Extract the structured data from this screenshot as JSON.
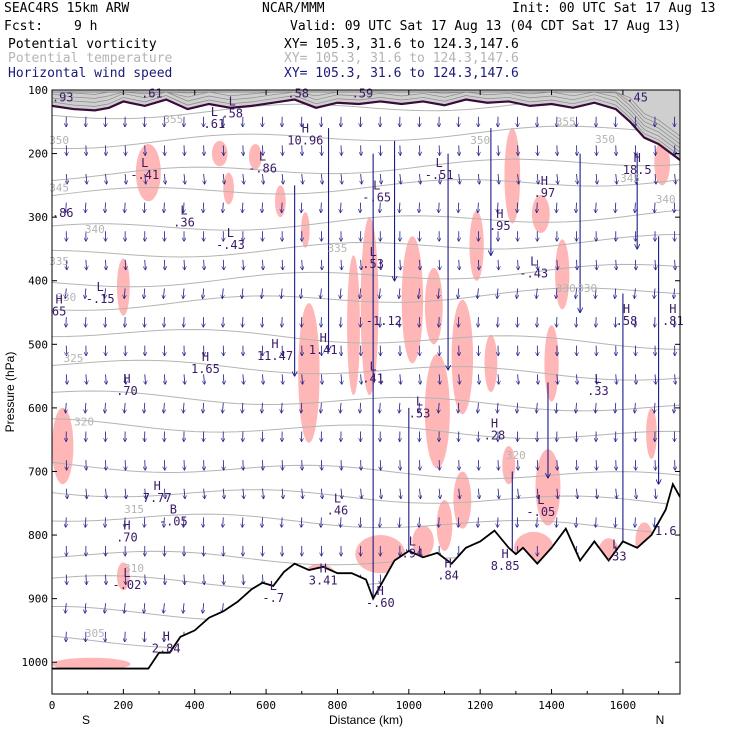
{
  "header": {
    "model": "SEAC4RS 15km ARW",
    "org": "NCAR/MMM",
    "init": "Init: 00 UTC Sat 17 Aug 13",
    "fcst_label": "Fcst:",
    "fcst_value": "9 h",
    "valid": "Valid: 09 UTC Sat 17 Aug 13 (04 CDT Sat 17 Aug 13)",
    "fields": [
      {
        "name": "Potential vorticity",
        "xy": "XY= 105.3, 31.6 to 124.3,147.6",
        "color": "#000000"
      },
      {
        "name": "Potential temperature",
        "xy": "XY= 105.3, 31.6 to 124.3,147.6",
        "color": "#b4b4b4"
      },
      {
        "name": "Horizontal wind speed",
        "xy": "XY= 105.3, 31.6 to 124.3,147.6",
        "color": "#1a1a7a"
      }
    ]
  },
  "chart_data": {
    "type": "cross-section",
    "xlabel": "Distance (km)",
    "ylabel": "Pressure (hPa)",
    "xlim": [
      0,
      1760
    ],
    "ylim": [
      1050,
      100
    ],
    "x_ticks": [
      "0",
      "200",
      "400",
      "600",
      "800",
      "1000",
      "1200",
      "1400",
      "1600"
    ],
    "y_ticks": [
      "100",
      "200",
      "300",
      "400",
      "500",
      "600",
      "700",
      "800",
      "900",
      "1000"
    ],
    "end_left": "S",
    "end_right": "N",
    "colors": {
      "theta": "#b4b4b4",
      "wind": "#1a1a8a",
      "pv_shade": "#ffb6b6",
      "terrain": "#000000",
      "tropopause": "#3a0a3a"
    },
    "theta_labels": [
      {
        "text": "350",
        "x": 20,
        "p": 185
      },
      {
        "text": "345",
        "x": 20,
        "p": 260
      },
      {
        "text": "340",
        "x": 120,
        "p": 325
      },
      {
        "text": "335",
        "x": 20,
        "p": 375
      },
      {
        "text": "330",
        "x": 40,
        "p": 432
      },
      {
        "text": "325",
        "x": 60,
        "p": 528
      },
      {
        "text": "320",
        "x": 90,
        "p": 628
      },
      {
        "text": "315",
        "x": 230,
        "p": 765
      },
      {
        "text": "310",
        "x": 230,
        "p": 858
      },
      {
        "text": "305",
        "x": 120,
        "p": 960
      },
      {
        "text": "350",
        "x": 1550,
        "p": 183
      },
      {
        "text": "345",
        "x": 1620,
        "p": 245
      },
      {
        "text": "340",
        "x": 1720,
        "p": 278
      },
      {
        "text": "335",
        "x": 800,
        "p": 355
      },
      {
        "text": "330",
        "x": 1440,
        "p": 418
      },
      {
        "text": "330",
        "x": 1500,
        "p": 418
      },
      {
        "text": "355",
        "x": 340,
        "p": 152
      },
      {
        "text": "350",
        "x": 1200,
        "p": 185
      },
      {
        "text": "320",
        "x": 1300,
        "p": 680
      },
      {
        "text": "355",
        "x": 1440,
        "p": 156
      }
    ],
    "hl_labels": [
      {
        "sym": "",
        "val": ".93",
        "x": 30,
        "p": 118
      },
      {
        "sym": "",
        "val": ".61",
        "x": 280,
        "p": 112
      },
      {
        "sym": "",
        "val": ".58",
        "x": 690,
        "p": 112
      },
      {
        "sym": "",
        "val": ".59",
        "x": 870,
        "p": 112
      },
      {
        "sym": "",
        "val": ".45",
        "x": 1640,
        "p": 118
      },
      {
        "sym": "L",
        "val": ".61",
        "x": 455,
        "p": 160
      },
      {
        "sym": "L",
        "val": ".58",
        "x": 505,
        "p": 143
      },
      {
        "sym": "H",
        "val": "10.96",
        "x": 710,
        "p": 186
      },
      {
        "sym": "L",
        "val": "-.41",
        "x": 260,
        "p": 240
      },
      {
        "sym": "L",
        "val": "-.86",
        "x": 590,
        "p": 230
      },
      {
        "sym": "L",
        "val": "-.51",
        "x": 1085,
        "p": 240
      },
      {
        "sym": "H",
        "val": "18.5",
        "x": 1640,
        "p": 232
      },
      {
        "sym": "H",
        "val": ".97",
        "x": 1380,
        "p": 268
      },
      {
        "sym": "L",
        "val": "-.65",
        "x": 910,
        "p": 275
      },
      {
        "sym": "",
        "val": ".86",
        "x": 30,
        "p": 300
      },
      {
        "sym": "L",
        "val": ".36",
        "x": 370,
        "p": 315
      },
      {
        "sym": "H",
        "val": ".95",
        "x": 1255,
        "p": 320
      },
      {
        "sym": "L",
        "val": "-.43",
        "x": 500,
        "p": 350
      },
      {
        "sym": "L",
        "val": ".53",
        "x": 900,
        "p": 380
      },
      {
        "sym": "L",
        "val": "-.43",
        "x": 1350,
        "p": 395
      },
      {
        "sym": "L",
        "val": "-.15",
        "x": 135,
        "p": 435
      },
      {
        "sym": "H",
        "val": "65",
        "x": 20,
        "p": 455
      },
      {
        "sym": "",
        "val": "-1.12",
        "x": 930,
        "p": 470
      },
      {
        "sym": "H",
        "val": ".58",
        "x": 1610,
        "p": 470
      },
      {
        "sym": "H",
        "val": ".81",
        "x": 1740,
        "p": 470
      },
      {
        "sym": "H",
        "val": "11.47",
        "x": 625,
        "p": 525
      },
      {
        "sym": "H",
        "val": "1.41",
        "x": 760,
        "p": 515
      },
      {
        "sym": "H",
        "val": "1.65",
        "x": 430,
        "p": 545
      },
      {
        "sym": "L",
        "val": ".41",
        "x": 900,
        "p": 560
      },
      {
        "sym": "H",
        "val": ".70",
        "x": 210,
        "p": 580
      },
      {
        "sym": "L",
        "val": ".33",
        "x": 1530,
        "p": 580
      },
      {
        "sym": "L",
        "val": ".53",
        "x": 1030,
        "p": 615
      },
      {
        "sym": "H",
        "val": ".28",
        "x": 1240,
        "p": 650
      },
      {
        "sym": "H",
        "val": "7.77",
        "x": 295,
        "p": 748
      },
      {
        "sym": "L",
        "val": ".46",
        "x": 800,
        "p": 768
      },
      {
        "sym": "B",
        "val": "-.05",
        "x": 340,
        "p": 785
      },
      {
        "sym": "L",
        "val": "-.05",
        "x": 1370,
        "p": 770
      },
      {
        "sym": "H",
        "val": ".70",
        "x": 210,
        "p": 810
      },
      {
        "sym": "L",
        "val": ".94",
        "x": 1010,
        "p": 835
      },
      {
        "sym": "H",
        "val": ".84",
        "x": 1110,
        "p": 870
      },
      {
        "sym": "H",
        "val": "8.85",
        "x": 1270,
        "p": 855
      },
      {
        "sym": "L",
        "val": ".33",
        "x": 1580,
        "p": 840
      },
      {
        "sym": "L",
        "val": "-.02",
        "x": 210,
        "p": 885
      },
      {
        "sym": "H",
        "val": "3.41",
        "x": 760,
        "p": 878
      },
      {
        "sym": "H",
        "val": "-.60",
        "x": 920,
        "p": 913
      },
      {
        "sym": "L",
        "val": "-.7",
        "x": 620,
        "p": 905
      },
      {
        "sym": "H",
        "val": "2.84",
        "x": 320,
        "p": 985
      },
      {
        "sym": "",
        "val": "1.6",
        "x": 1720,
        "p": 800
      }
    ],
    "terrain": [
      [
        0,
        1010
      ],
      [
        50,
        1010
      ],
      [
        100,
        1010
      ],
      [
        200,
        1010
      ],
      [
        270,
        1010
      ],
      [
        300,
        985
      ],
      [
        330,
        985
      ],
      [
        360,
        960
      ],
      [
        400,
        950
      ],
      [
        440,
        930
      ],
      [
        480,
        920
      ],
      [
        520,
        905
      ],
      [
        560,
        885
      ],
      [
        590,
        875
      ],
      [
        620,
        880
      ],
      [
        650,
        858
      ],
      [
        680,
        845
      ],
      [
        720,
        855
      ],
      [
        760,
        850
      ],
      [
        800,
        860
      ],
      [
        840,
        860
      ],
      [
        880,
        870
      ],
      [
        900,
        900
      ],
      [
        920,
        880
      ],
      [
        960,
        840
      ],
      [
        1000,
        825
      ],
      [
        1040,
        835
      ],
      [
        1080,
        828
      ],
      [
        1120,
        845
      ],
      [
        1160,
        820
      ],
      [
        1200,
        810
      ],
      [
        1240,
        793
      ],
      [
        1280,
        820
      ],
      [
        1300,
        830
      ],
      [
        1320,
        820
      ],
      [
        1360,
        845
      ],
      [
        1400,
        820
      ],
      [
        1440,
        790
      ],
      [
        1480,
        840
      ],
      [
        1520,
        810
      ],
      [
        1560,
        840
      ],
      [
        1600,
        810
      ],
      [
        1640,
        820
      ],
      [
        1680,
        800
      ],
      [
        1720,
        760
      ],
      [
        1740,
        720
      ],
      [
        1760,
        740
      ]
    ],
    "tropopause": [
      [
        0,
        125
      ],
      [
        60,
        130
      ],
      [
        120,
        132
      ],
      [
        160,
        128
      ],
      [
        200,
        118
      ],
      [
        260,
        125
      ],
      [
        320,
        115
      ],
      [
        380,
        130
      ],
      [
        440,
        122
      ],
      [
        500,
        128
      ],
      [
        560,
        125
      ],
      [
        620,
        120
      ],
      [
        680,
        115
      ],
      [
        740,
        128
      ],
      [
        800,
        120
      ],
      [
        860,
        122
      ],
      [
        920,
        118
      ],
      [
        980,
        122
      ],
      [
        1040,
        118
      ],
      [
        1100,
        124
      ],
      [
        1160,
        115
      ],
      [
        1220,
        120
      ],
      [
        1280,
        118
      ],
      [
        1340,
        125
      ],
      [
        1400,
        122
      ],
      [
        1460,
        128
      ],
      [
        1520,
        120
      ],
      [
        1580,
        130
      ],
      [
        1620,
        150
      ],
      [
        1660,
        175
      ],
      [
        1700,
        185
      ],
      [
        1760,
        210
      ]
    ],
    "pv_regions": [
      {
        "x": 270,
        "p": 230,
        "rx": 35,
        "rp": 45
      },
      {
        "x": 470,
        "p": 200,
        "rx": 22,
        "rp": 20
      },
      {
        "x": 495,
        "p": 255,
        "rx": 15,
        "rp": 25
      },
      {
        "x": 570,
        "p": 205,
        "rx": 18,
        "rp": 20
      },
      {
        "x": 640,
        "p": 275,
        "rx": 15,
        "rp": 25
      },
      {
        "x": 710,
        "p": 320,
        "rx": 12,
        "rp": 28
      },
      {
        "x": 200,
        "p": 410,
        "rx": 18,
        "rp": 45
      },
      {
        "x": 890,
        "p": 440,
        "rx": 25,
        "rp": 140
      },
      {
        "x": 845,
        "p": 470,
        "rx": 18,
        "rp": 110
      },
      {
        "x": 1010,
        "p": 430,
        "rx": 30,
        "rp": 100
      },
      {
        "x": 1070,
        "p": 440,
        "rx": 25,
        "rp": 60
      },
      {
        "x": 1080,
        "p": 605,
        "rx": 35,
        "rp": 90
      },
      {
        "x": 1150,
        "p": 520,
        "rx": 30,
        "rp": 90
      },
      {
        "x": 1190,
        "p": 345,
        "rx": 20,
        "rp": 55
      },
      {
        "x": 1290,
        "p": 235,
        "rx": 22,
        "rp": 75
      },
      {
        "x": 1370,
        "p": 295,
        "rx": 25,
        "rp": 30
      },
      {
        "x": 1430,
        "p": 390,
        "rx": 20,
        "rp": 55
      },
      {
        "x": 1400,
        "p": 530,
        "rx": 20,
        "rp": 60
      },
      {
        "x": 1230,
        "p": 530,
        "rx": 18,
        "rp": 45
      },
      {
        "x": 720,
        "p": 545,
        "rx": 30,
        "rp": 110
      },
      {
        "x": 30,
        "p": 660,
        "rx": 30,
        "rp": 60
      },
      {
        "x": 1390,
        "p": 725,
        "rx": 35,
        "rp": 60
      },
      {
        "x": 1150,
        "p": 745,
        "rx": 25,
        "rp": 45
      },
      {
        "x": 1280,
        "p": 690,
        "rx": 18,
        "rp": 30
      },
      {
        "x": 1680,
        "p": 640,
        "rx": 15,
        "rp": 40
      },
      {
        "x": 1100,
        "p": 785,
        "rx": 22,
        "rp": 40
      },
      {
        "x": 920,
        "p": 830,
        "rx": 70,
        "rp": 30
      },
      {
        "x": 1040,
        "p": 810,
        "rx": 30,
        "rp": 25
      },
      {
        "x": 1350,
        "p": 820,
        "rx": 55,
        "rp": 25
      },
      {
        "x": 1560,
        "p": 830,
        "rx": 30,
        "rp": 25
      },
      {
        "x": 1660,
        "p": 810,
        "rx": 25,
        "rp": 30
      },
      {
        "x": 200,
        "p": 865,
        "rx": 18,
        "rp": 22
      },
      {
        "x": 750,
        "p": 870,
        "rx": 50,
        "rp": 25
      },
      {
        "x": 110,
        "p": 1003,
        "rx": 110,
        "rp": 10
      },
      {
        "x": 1710,
        "p": 215,
        "rx": 22,
        "rp": 35
      }
    ],
    "wind_vectors": [
      {
        "x": 900,
        "p": 200,
        "dp": 780
      },
      {
        "x": 775,
        "p": 160,
        "dp": 350
      },
      {
        "x": 680,
        "p": 250,
        "dp": 300
      },
      {
        "x": 1110,
        "p": 200,
        "dp": 340
      },
      {
        "x": 1700,
        "p": 330,
        "dp": 390
      },
      {
        "x": 1600,
        "p": 420,
        "dp": 420
      },
      {
        "x": 1290,
        "p": 700,
        "dp": 170
      },
      {
        "x": 1000,
        "p": 600,
        "dp": 230
      },
      {
        "x": 960,
        "p": 180,
        "dp": 220
      },
      {
        "x": 1480,
        "p": 200,
        "dp": 250
      },
      {
        "x": 1640,
        "p": 200,
        "dp": 150
      },
      {
        "x": 1230,
        "p": 160,
        "dp": 200
      },
      {
        "x": 1390,
        "p": 560,
        "dp": 150
      }
    ]
  }
}
